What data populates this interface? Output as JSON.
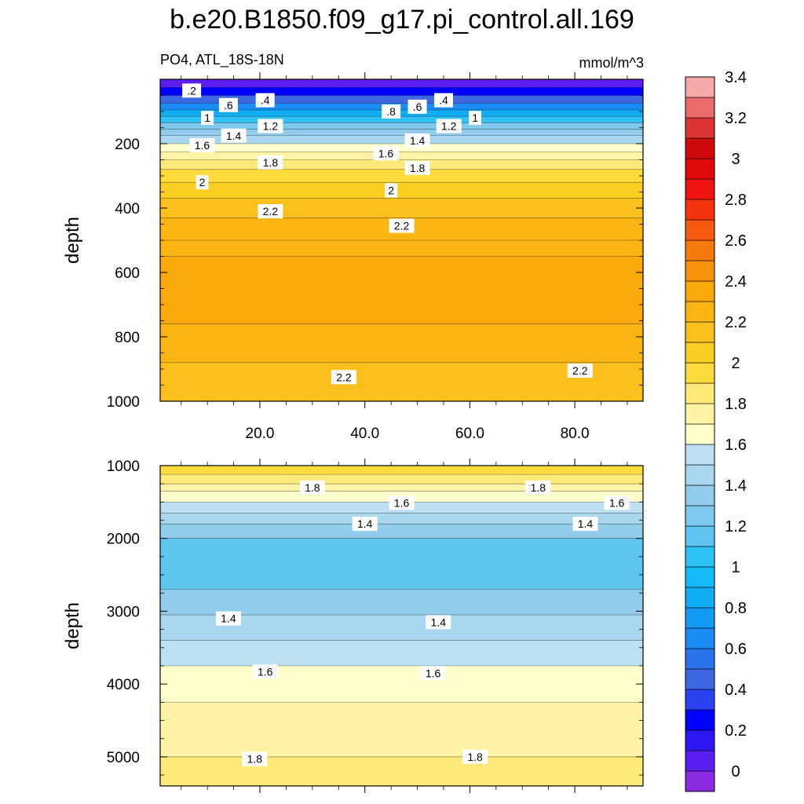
{
  "colors": {
    "palette": [
      "#8a2be2",
      "#5a1ef0",
      "#2d17f5",
      "#0000ff",
      "#2b42f2",
      "#3d67e3",
      "#2a73ec",
      "#1a8cf5",
      "#129cf7",
      "#10adf5",
      "#14b9f7",
      "#2ec2f7",
      "#5ec4f0",
      "#7ec9ef",
      "#92ccec",
      "#a9d7ef",
      "#bde0f2",
      "#ffffcc",
      "#fff4a6",
      "#fee979",
      "#fddb3c",
      "#fcce22",
      "#fbc01c",
      "#fab513",
      "#f9a90a",
      "#f8920b",
      "#f6790b",
      "#f55a0e",
      "#f5340f",
      "#f01410",
      "#e00a0a",
      "#cf0a0a",
      "#dc3434",
      "#ea6b6b",
      "#f5a9a9"
    ]
  },
  "chart_data": {
    "type": "heatmap",
    "title": "b.e20.B1850.f09_g17.pi_control.all.169",
    "subtitle_left": "PO4, ATL_18S-18N",
    "subtitle_right": "mmol/m^3",
    "ylabel": "depth",
    "x_tick_labels": [
      "20.0",
      "40.0",
      "60.0",
      "80.0"
    ],
    "x_ticks": [
      20,
      40,
      60,
      80
    ],
    "xlim": [
      1,
      93
    ],
    "colorbar": {
      "levels": [
        0,
        0.1,
        0.2,
        0.3,
        0.4,
        0.5,
        0.6,
        0.7,
        0.8,
        0.9,
        1.0,
        1.1,
        1.2,
        1.3,
        1.4,
        1.5,
        1.6,
        1.7,
        1.8,
        1.9,
        2.0,
        2.1,
        2.2,
        2.3,
        2.4,
        2.5,
        2.6,
        2.7,
        2.8,
        2.9,
        3.0,
        3.1,
        3.2,
        3.3,
        3.4
      ],
      "tick_labels": [
        "0",
        "0.2",
        "0.4",
        "0.6",
        "0.8",
        "1",
        "1.2",
        "1.4",
        "1.6",
        "1.8",
        "2",
        "2.2",
        "2.4",
        "2.6",
        "2.8",
        "3",
        "3.2",
        "3.4"
      ]
    },
    "panels": [
      {
        "name": "upper-panel",
        "ylim": [
          0,
          1000
        ],
        "y_ticks": [
          200,
          400,
          600,
          800,
          1000
        ],
        "y_tick_labels": [
          "200",
          "400",
          "600",
          "800",
          "1000"
        ],
        "y_minor": [
          50,
          100,
          150,
          250,
          300,
          350,
          450,
          500,
          550,
          650,
          700,
          750,
          850,
          900,
          950
        ],
        "show_x_labels": true,
        "bands": [
          {
            "y0": 0,
            "y1": 25,
            "value": 0.05
          },
          {
            "y0": 25,
            "y1": 50,
            "value": 0.25
          },
          {
            "y0": 50,
            "y1": 75,
            "value": 0.45
          },
          {
            "y0": 75,
            "y1": 95,
            "value": 0.65
          },
          {
            "y0": 95,
            "y1": 115,
            "value": 0.85
          },
          {
            "y0": 115,
            "y1": 135,
            "value": 1.05
          },
          {
            "y0": 135,
            "y1": 155,
            "value": 1.2
          },
          {
            "y0": 155,
            "y1": 175,
            "value": 1.3
          },
          {
            "y0": 175,
            "y1": 200,
            "value": 1.45
          },
          {
            "y0": 200,
            "y1": 225,
            "value": 1.6
          },
          {
            "y0": 225,
            "y1": 250,
            "value": 1.75
          },
          {
            "y0": 250,
            "y1": 280,
            "value": 1.85
          },
          {
            "y0": 280,
            "y1": 320,
            "value": 1.95
          },
          {
            "y0": 320,
            "y1": 370,
            "value": 2.05
          },
          {
            "y0": 370,
            "y1": 430,
            "value": 2.15
          },
          {
            "y0": 430,
            "y1": 500,
            "value": 2.22
          },
          {
            "y0": 500,
            "y1": 550,
            "value": 2.28
          },
          {
            "y0": 550,
            "y1": 760,
            "value": 2.35
          },
          {
            "y0": 760,
            "y1": 880,
            "value": 2.25
          },
          {
            "y0": 880,
            "y1": 1000,
            "value": 2.15
          }
        ],
        "labels": [
          {
            "text": ".2",
            "x": 7,
            "y": 35
          },
          {
            "text": ".6",
            "x": 14,
            "y": 80
          },
          {
            "text": ".4",
            "x": 21,
            "y": 65
          },
          {
            "text": ".8",
            "x": 45,
            "y": 100
          },
          {
            "text": ".6",
            "x": 50,
            "y": 85
          },
          {
            "text": ".4",
            "x": 55,
            "y": 65
          },
          {
            "text": "1",
            "x": 10,
            "y": 120
          },
          {
            "text": "1.2",
            "x": 22,
            "y": 145
          },
          {
            "text": "1",
            "x": 61,
            "y": 120
          },
          {
            "text": "1.2",
            "x": 56,
            "y": 145
          },
          {
            "text": "1.4",
            "x": 15,
            "y": 175
          },
          {
            "text": "1.4",
            "x": 50,
            "y": 190
          },
          {
            "text": "1.6",
            "x": 9,
            "y": 205
          },
          {
            "text": "1.6",
            "x": 44,
            "y": 230
          },
          {
            "text": "1.8",
            "x": 22,
            "y": 258
          },
          {
            "text": "1.8",
            "x": 50,
            "y": 275
          },
          {
            "text": "2",
            "x": 9,
            "y": 320
          },
          {
            "text": "2",
            "x": 45,
            "y": 345
          },
          {
            "text": "2.2",
            "x": 22,
            "y": 410
          },
          {
            "text": "2.2",
            "x": 47,
            "y": 455
          },
          {
            "text": "2.2",
            "x": 36,
            "y": 925
          },
          {
            "text": "2.2",
            "x": 81,
            "y": 905
          }
        ]
      },
      {
        "name": "lower-panel",
        "ylim": [
          1000,
          5400
        ],
        "y_ticks": [
          1000,
          2000,
          3000,
          4000,
          5000
        ],
        "y_tick_labels": [
          "1000",
          "2000",
          "3000",
          "4000",
          "5000"
        ],
        "y_minor": [
          1250,
          1500,
          1750,
          2250,
          2500,
          2750,
          3250,
          3500,
          3750,
          4250,
          4500,
          4750,
          5250
        ],
        "show_x_labels": false,
        "bands": [
          {
            "y0": 1000,
            "y1": 1120,
            "value": 1.95
          },
          {
            "y0": 1120,
            "y1": 1250,
            "value": 1.85
          },
          {
            "y0": 1250,
            "y1": 1350,
            "value": 1.75
          },
          {
            "y0": 1350,
            "y1": 1500,
            "value": 1.65
          },
          {
            "y0": 1500,
            "y1": 1650,
            "value": 1.55
          },
          {
            "y0": 1650,
            "y1": 1800,
            "value": 1.45
          },
          {
            "y0": 1800,
            "y1": 2000,
            "value": 1.35
          },
          {
            "y0": 2000,
            "y1": 2700,
            "value": 1.15
          },
          {
            "y0": 2700,
            "y1": 3050,
            "value": 1.3
          },
          {
            "y0": 3050,
            "y1": 3400,
            "value": 1.45
          },
          {
            "y0": 3400,
            "y1": 3750,
            "value": 1.55
          },
          {
            "y0": 3750,
            "y1": 4250,
            "value": 1.65
          },
          {
            "y0": 4250,
            "y1": 5000,
            "value": 1.75
          },
          {
            "y0": 5000,
            "y1": 5400,
            "value": 1.85
          }
        ],
        "labels": [
          {
            "text": "1.8",
            "x": 30,
            "y": 1300
          },
          {
            "text": "1.8",
            "x": 73,
            "y": 1300
          },
          {
            "text": "1.6",
            "x": 47,
            "y": 1510
          },
          {
            "text": "1.6",
            "x": 88,
            "y": 1510
          },
          {
            "text": "1.4",
            "x": 40,
            "y": 1800
          },
          {
            "text": "1.4",
            "x": 82,
            "y": 1800
          },
          {
            "text": "1.4",
            "x": 14,
            "y": 3100
          },
          {
            "text": "1.4",
            "x": 54,
            "y": 3150
          },
          {
            "text": "1.6",
            "x": 21,
            "y": 3830
          },
          {
            "text": "1.6",
            "x": 53,
            "y": 3850
          },
          {
            "text": "1.8",
            "x": 19,
            "y": 5030
          },
          {
            "text": "1.8",
            "x": 61,
            "y": 5000
          }
        ]
      }
    ]
  }
}
